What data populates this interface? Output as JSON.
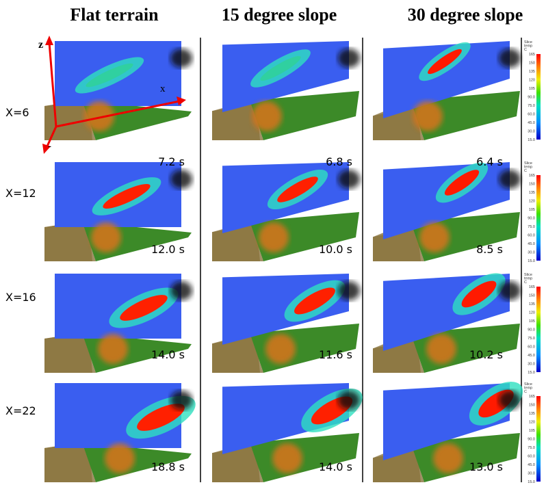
{
  "columns": [
    {
      "title": "Flat terrain"
    },
    {
      "title": "15 degree slope"
    },
    {
      "title": "30 degree slope"
    }
  ],
  "rows": [
    {
      "label": "X=6",
      "times": [
        "7.2 s",
        "6.8 s",
        "6.4 s"
      ]
    },
    {
      "label": "X=12",
      "times": [
        "12.0 s",
        "10.0 s",
        "8.5 s"
      ]
    },
    {
      "label": "X=16",
      "times": [
        "14.0 s",
        "11.6 s",
        "10.2 s"
      ]
    },
    {
      "label": "X=22",
      "times": [
        "18.8 s",
        "14.0 s",
        "13.0 s"
      ]
    }
  ],
  "axes": {
    "z": "z",
    "x": "x",
    "y": "-"
  },
  "colorbar": {
    "title": [
      "Slice",
      "temp",
      "C"
    ],
    "ticks": [
      "165",
      "150",
      "135",
      "120",
      "105",
      "90.0",
      "75.0",
      "60.0",
      "45.0",
      "30.0",
      "15.0"
    ]
  }
}
